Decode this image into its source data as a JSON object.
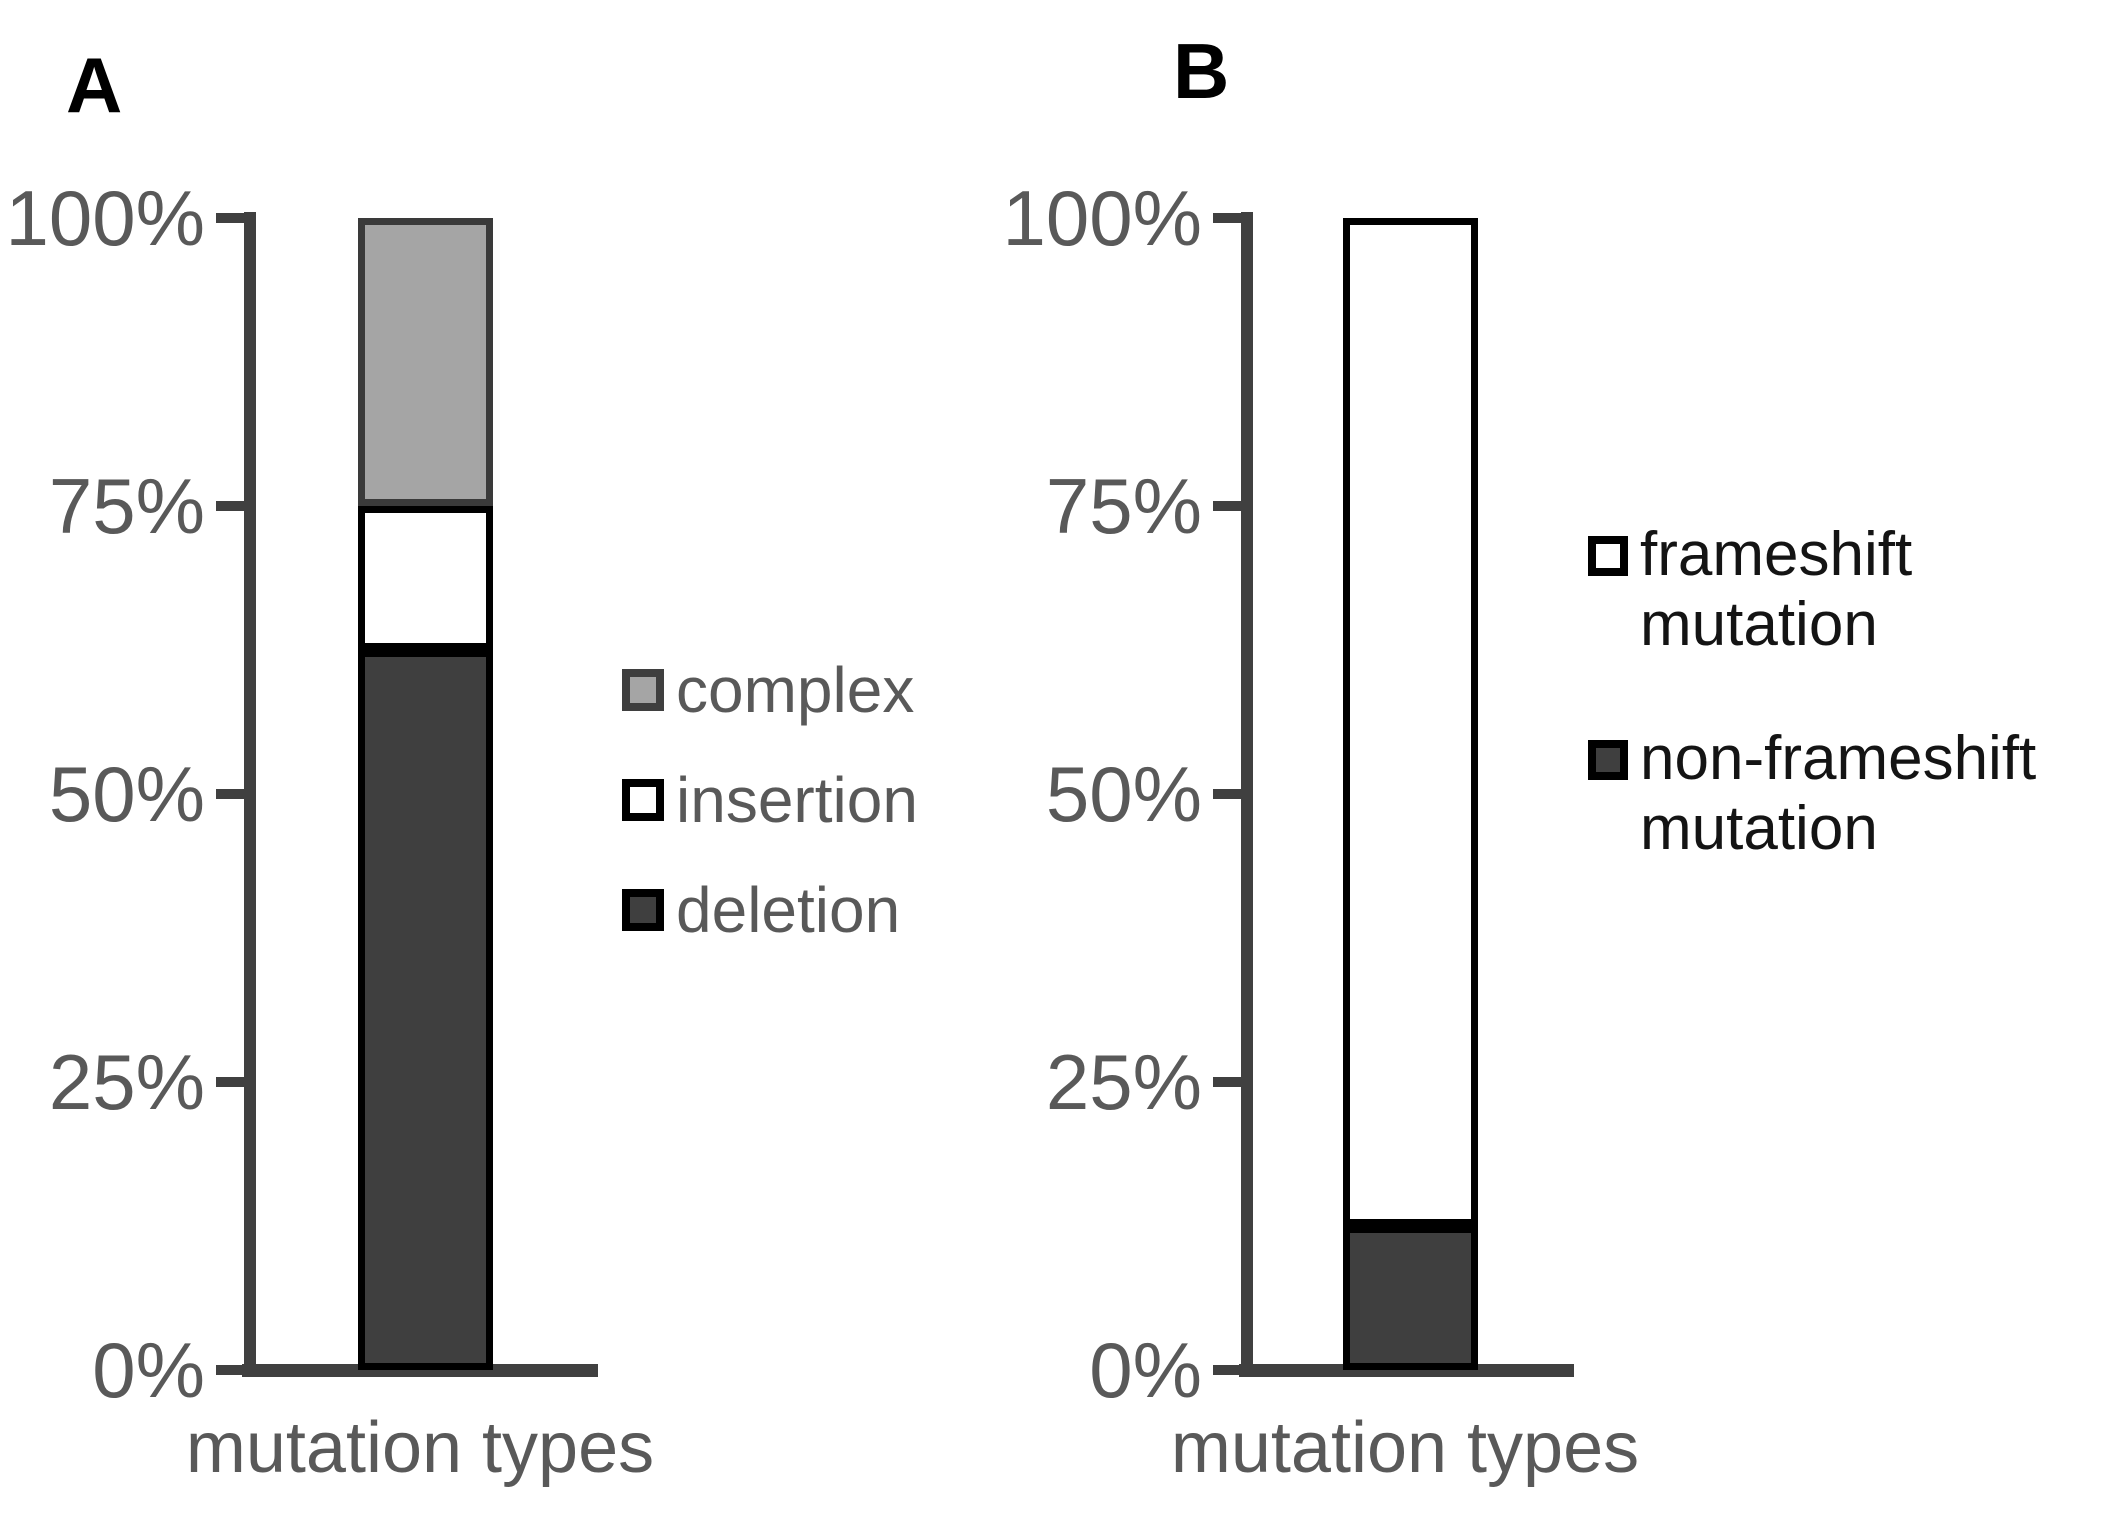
{
  "panels": [
    {
      "label": "A",
      "x_label": "mutation types",
      "y_tick_labels": [
        "0%",
        "25%",
        "50%",
        "75%",
        "100%"
      ],
      "legend_items": [
        {
          "lines": [
            "complex"
          ],
          "fill": "#a5a5a5",
          "border": "#3f3f3f"
        },
        {
          "lines": [
            "insertion"
          ],
          "fill": "#ffffff",
          "border": "#000000"
        },
        {
          "lines": [
            "deletion"
          ],
          "fill": "#3f3f3f",
          "border": "#000000"
        }
      ]
    },
    {
      "label": "B",
      "x_label": "mutation types",
      "y_tick_labels": [
        "0%",
        "25%",
        "50%",
        "75%",
        "100%"
      ],
      "legend_items": [
        {
          "lines": [
            "frameshift",
            "mutation"
          ],
          "fill": "#ffffff",
          "border": "#000000"
        },
        {
          "lines": [
            "non-frameshift",
            "mutation"
          ],
          "fill": "#3f3f3f",
          "border": "#000000"
        }
      ]
    }
  ],
  "chart_data": [
    {
      "type": "bar",
      "stacked": true,
      "title": "",
      "xlabel": "mutation types",
      "ylabel": "",
      "ylim": [
        0,
        100
      ],
      "y_tick_labels": [
        "0%",
        "25%",
        "50%",
        "75%",
        "100%"
      ],
      "grid": false,
      "legend_position": "right",
      "categories": [
        "mutation types"
      ],
      "series": [
        {
          "name": "deletion",
          "values": [
            62.5
          ],
          "fill": "#3f3f3f",
          "border": "#000000"
        },
        {
          "name": "insertion",
          "values": [
            12.5
          ],
          "fill": "#ffffff",
          "border": "#000000"
        },
        {
          "name": "complex",
          "values": [
            25
          ],
          "fill": "#a5a5a5",
          "border": "#3a3a3a"
        }
      ]
    },
    {
      "type": "bar",
      "stacked": true,
      "title": "",
      "xlabel": "mutation types",
      "ylabel": "",
      "ylim": [
        0,
        100
      ],
      "y_tick_labels": [
        "0%",
        "25%",
        "50%",
        "75%",
        "100%"
      ],
      "grid": false,
      "legend_position": "right",
      "categories": [
        "mutation types"
      ],
      "series": [
        {
          "name": "non-frameshift mutation",
          "values": [
            12.5
          ],
          "fill": "#3f3f3f",
          "border": "#000000"
        },
        {
          "name": "frameshift mutation",
          "values": [
            87.5
          ],
          "fill": "#ffffff",
          "border": "#000000"
        }
      ]
    }
  ],
  "colors": {
    "axis": "#404040",
    "tick_text": "#595959",
    "legend_a_text": "#595959",
    "legend_b_text": "#141414",
    "dark_fill": "#3f3f3f",
    "gray_fill": "#a5a5a5"
  }
}
